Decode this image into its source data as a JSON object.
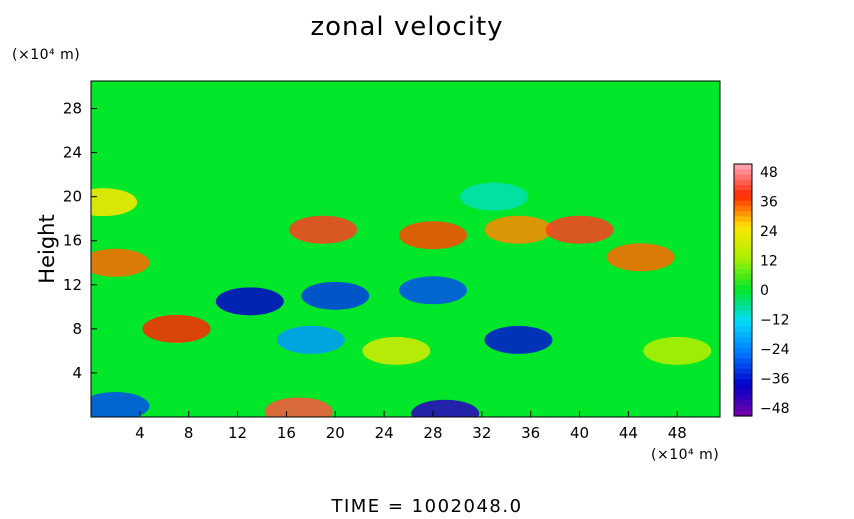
{
  "chart_data": {
    "type": "heatmap",
    "title": "zonal velocity",
    "ylabel": "Height",
    "x_unit_label": "(×10⁴ m)",
    "y_unit_label": "(×10⁴ m)",
    "time_label": "TIME  =  1002048.0",
    "xlim": [
      0,
      51.5
    ],
    "ylim": [
      0,
      30.5
    ],
    "x_ticks": [
      4,
      8,
      12,
      16,
      20,
      24,
      28,
      32,
      36,
      40,
      44,
      48
    ],
    "y_ticks": [
      4,
      8,
      12,
      16,
      20,
      24,
      28
    ],
    "colorbar": {
      "min": -48,
      "max": 48,
      "ticks": [
        48,
        36,
        24,
        12,
        0,
        -12,
        -24,
        -36,
        -48
      ],
      "tick_labels": [
        "48",
        "36",
        "24",
        "12",
        "0",
        "−12",
        "−24",
        "−36",
        "−48"
      ]
    },
    "background_value": 0,
    "features": [
      {
        "x": 19,
        "y": 17,
        "value": 38
      },
      {
        "x": 28,
        "y": 16.5,
        "value": 34
      },
      {
        "x": 35,
        "y": 17,
        "value": 30
      },
      {
        "x": 40,
        "y": 17,
        "value": 38
      },
      {
        "x": 45,
        "y": 14.5,
        "value": 32
      },
      {
        "x": 2,
        "y": 14,
        "value": 32
      },
      {
        "x": 1,
        "y": 19.5,
        "value": 24
      },
      {
        "x": 7,
        "y": 8,
        "value": 36
      },
      {
        "x": 17,
        "y": 0.5,
        "value": 40
      },
      {
        "x": 13,
        "y": 10.5,
        "value": -36
      },
      {
        "x": 20,
        "y": 11,
        "value": -30
      },
      {
        "x": 28,
        "y": 11.5,
        "value": -28
      },
      {
        "x": 35,
        "y": 7,
        "value": -34
      },
      {
        "x": 18,
        "y": 7,
        "value": -20
      },
      {
        "x": 2,
        "y": 1,
        "value": -28
      },
      {
        "x": 29,
        "y": 0.3,
        "value": -40
      },
      {
        "x": 25,
        "y": 6,
        "value": 18
      },
      {
        "x": 33,
        "y": 20,
        "value": -8
      },
      {
        "x": 48,
        "y": 6,
        "value": 14
      }
    ]
  }
}
